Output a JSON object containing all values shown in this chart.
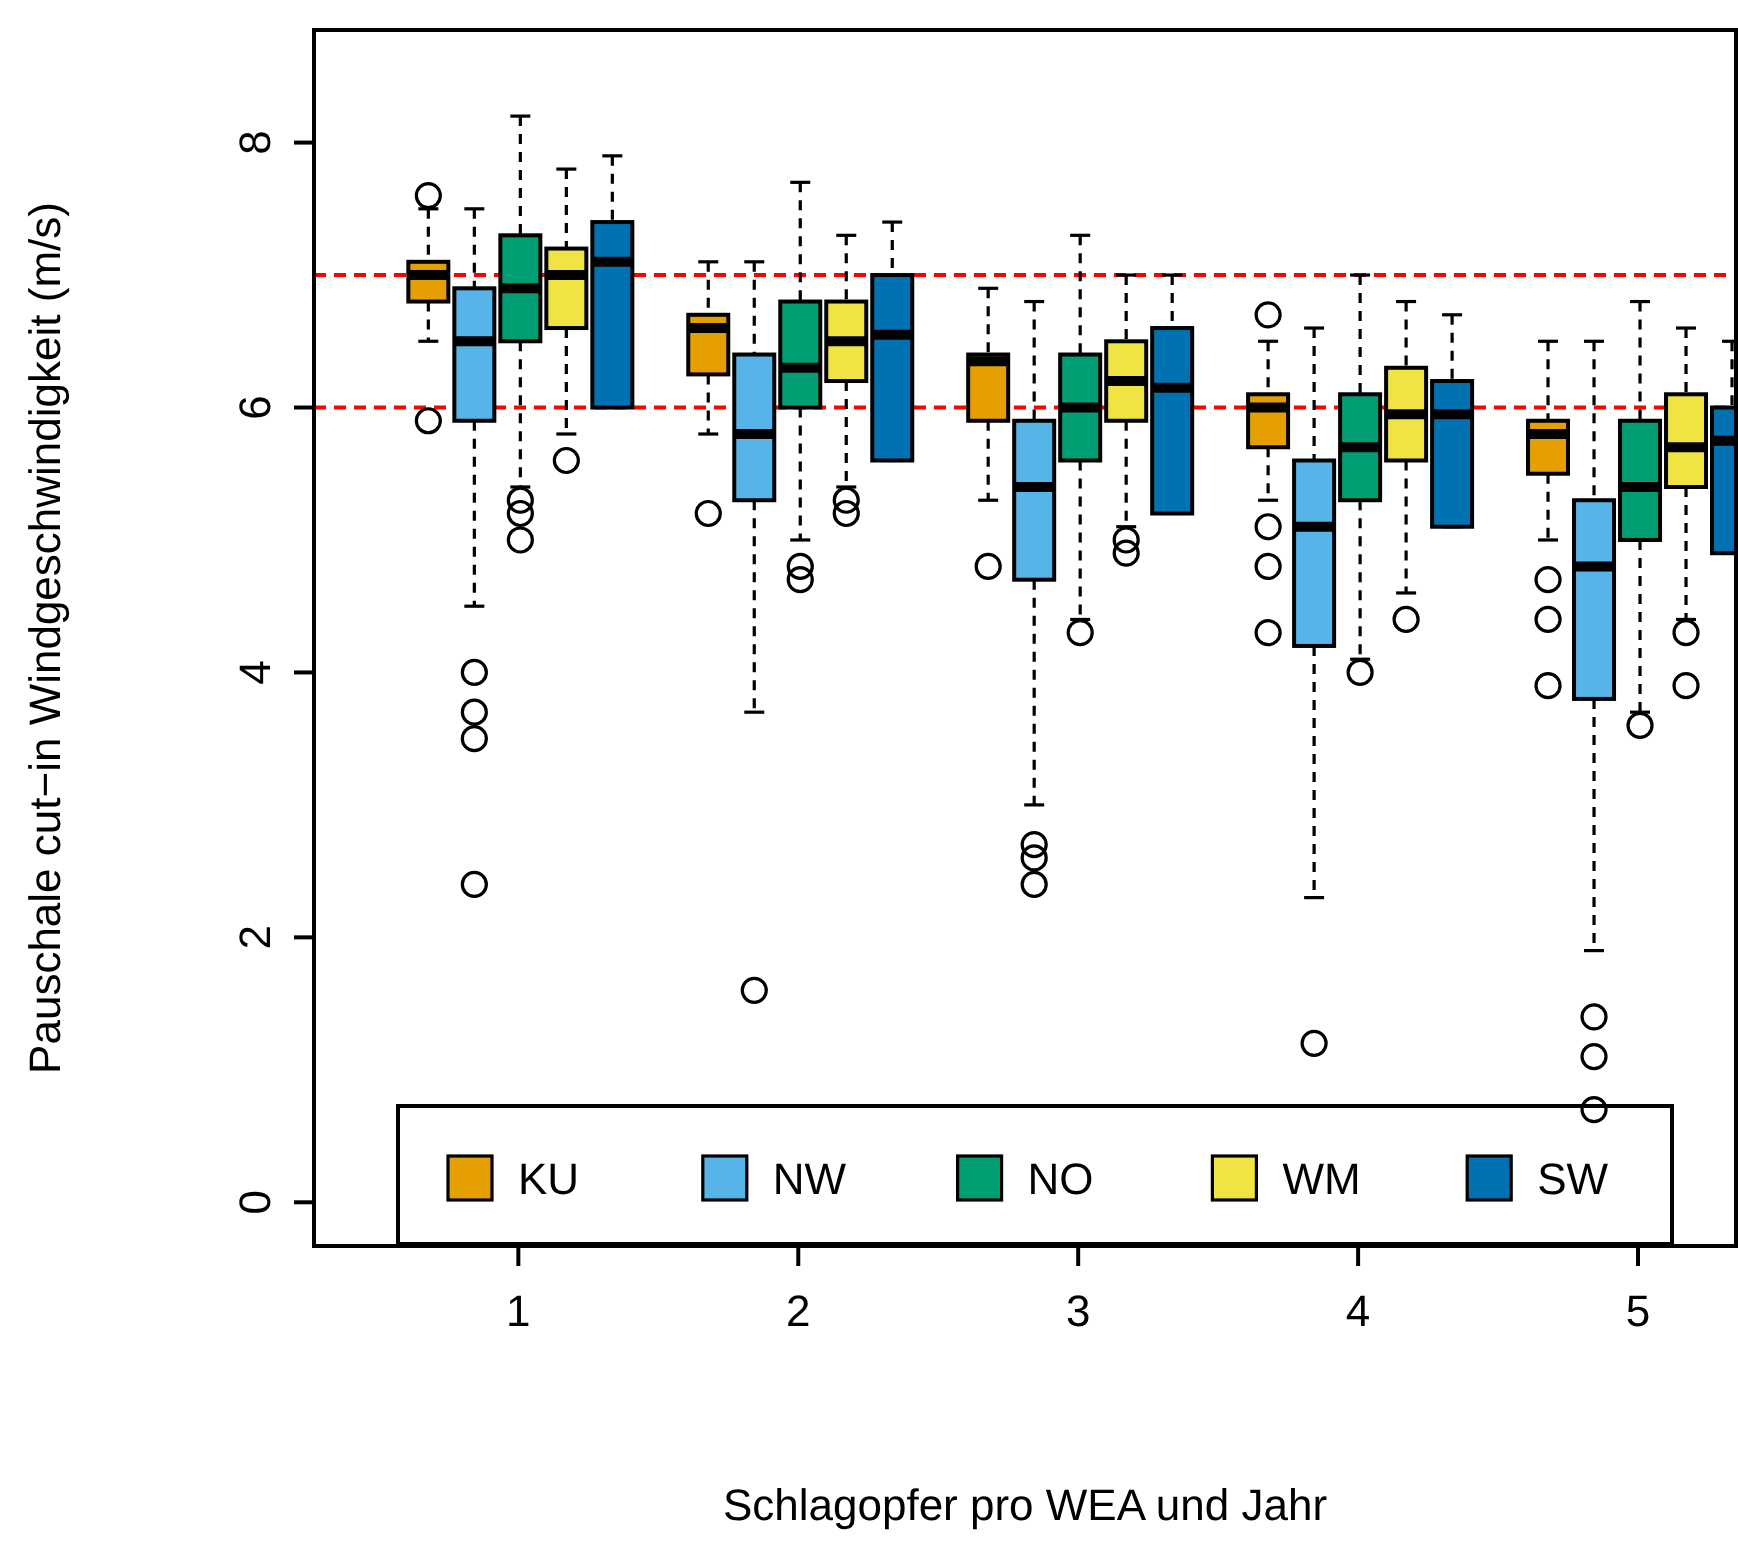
{
  "chart_data": {
    "type": "box",
    "xlabel": "Schlagopfer pro WEA und Jahr",
    "ylabel": "Pauschale cut−in Windgeschwindigkeit (m/s)",
    "categories": [
      "1",
      "2",
      "3",
      "4",
      "5"
    ],
    "ylim": [
      -0.33,
      8.85
    ],
    "yticks": [
      0,
      2,
      4,
      6,
      8
    ],
    "legend": "bottom",
    "grid": false,
    "ref_lines": [
      {
        "axis": "y",
        "value": 6,
        "color": "#ff0000",
        "line_style": "dashed"
      },
      {
        "axis": "y",
        "value": 7,
        "color": "#ff0000",
        "line_style": "dashed"
      }
    ],
    "series": [
      {
        "name": "KU",
        "color": "#e69f00",
        "boxes": [
          {
            "low": 6.5,
            "q1": 6.8,
            "median": 7.0,
            "q3": 7.1,
            "high": 7.5,
            "outliers": [
              7.6,
              5.9
            ]
          },
          {
            "low": 5.8,
            "q1": 6.25,
            "median": 6.6,
            "q3": 6.7,
            "high": 7.1,
            "outliers": [
              5.2
            ]
          },
          {
            "low": 5.3,
            "q1": 5.9,
            "median": 6.35,
            "q3": 6.4,
            "high": 6.9,
            "outliers": [
              4.8
            ]
          },
          {
            "low": 5.3,
            "q1": 5.7,
            "median": 6.0,
            "q3": 6.1,
            "high": 6.5,
            "outliers": [
              6.7,
              5.1,
              4.8,
              4.3
            ]
          },
          {
            "low": 5.0,
            "q1": 5.5,
            "median": 5.8,
            "q3": 5.9,
            "high": 6.5,
            "outliers": [
              4.7,
              4.4,
              3.9
            ]
          }
        ]
      },
      {
        "name": "NW",
        "color": "#56b4e9",
        "boxes": [
          {
            "low": 4.5,
            "q1": 5.9,
            "median": 6.5,
            "q3": 6.9,
            "high": 7.5,
            "outliers": [
              4.0,
              3.7,
              3.5,
              2.4
            ]
          },
          {
            "low": 3.7,
            "q1": 5.3,
            "median": 5.8,
            "q3": 6.4,
            "high": 7.1,
            "outliers": [
              1.6
            ]
          },
          {
            "low": 3.0,
            "q1": 4.7,
            "median": 5.4,
            "q3": 5.9,
            "high": 6.8,
            "outliers": [
              2.7,
              2.6,
              2.4
            ]
          },
          {
            "low": 2.3,
            "q1": 4.2,
            "median": 5.1,
            "q3": 5.6,
            "high": 6.6,
            "outliers": [
              1.2
            ]
          },
          {
            "low": 1.9,
            "q1": 3.8,
            "median": 4.8,
            "q3": 5.3,
            "high": 6.5,
            "outliers": [
              1.4,
              1.1,
              0.7
            ]
          }
        ]
      },
      {
        "name": "NO",
        "color": "#009e73",
        "boxes": [
          {
            "low": 5.4,
            "q1": 6.5,
            "median": 6.9,
            "q3": 7.3,
            "high": 8.2,
            "outliers": [
              5.3,
              5.2,
              5.0
            ]
          },
          {
            "low": 5.0,
            "q1": 6.0,
            "median": 6.3,
            "q3": 6.8,
            "high": 7.7,
            "outliers": [
              4.8,
              4.7
            ]
          },
          {
            "low": 4.4,
            "q1": 5.6,
            "median": 6.0,
            "q3": 6.4,
            "high": 7.3,
            "outliers": [
              4.3
            ]
          },
          {
            "low": 4.1,
            "q1": 5.3,
            "median": 5.7,
            "q3": 6.1,
            "high": 7.0,
            "outliers": [
              4.0
            ]
          },
          {
            "low": 3.7,
            "q1": 5.0,
            "median": 5.4,
            "q3": 5.9,
            "high": 6.8,
            "outliers": [
              3.6
            ]
          }
        ]
      },
      {
        "name": "WM",
        "color": "#f0e442",
        "boxes": [
          {
            "low": 5.8,
            "q1": 6.6,
            "median": 7.0,
            "q3": 7.2,
            "high": 7.8,
            "outliers": [
              5.6
            ]
          },
          {
            "low": 5.4,
            "q1": 6.2,
            "median": 6.5,
            "q3": 6.8,
            "high": 7.3,
            "outliers": [
              5.3,
              5.2
            ]
          },
          {
            "low": 5.1,
            "q1": 5.9,
            "median": 6.2,
            "q3": 6.5,
            "high": 7.0,
            "outliers": [
              5.0,
              4.9
            ]
          },
          {
            "low": 4.6,
            "q1": 5.6,
            "median": 5.95,
            "q3": 6.3,
            "high": 6.8,
            "outliers": [
              4.4
            ]
          },
          {
            "low": 4.4,
            "q1": 5.4,
            "median": 5.7,
            "q3": 6.1,
            "high": 6.6,
            "outliers": [
              4.3,
              3.9
            ]
          }
        ]
      },
      {
        "name": "SW",
        "color": "#0072b2",
        "boxes": [
          {
            "low": 6.0,
            "q1": 6.0,
            "median": 7.1,
            "q3": 7.4,
            "high": 7.9
          },
          {
            "low": 5.6,
            "q1": 5.6,
            "median": 6.55,
            "q3": 7.0,
            "high": 7.4
          },
          {
            "low": 5.2,
            "q1": 5.2,
            "median": 6.15,
            "q3": 6.6,
            "high": 7.0
          },
          {
            "low": 5.1,
            "q1": 5.1,
            "median": 5.95,
            "q3": 6.2,
            "high": 6.7
          },
          {
            "low": 4.9,
            "q1": 4.9,
            "median": 5.75,
            "q3": 6.0,
            "high": 6.5
          }
        ]
      }
    ]
  }
}
